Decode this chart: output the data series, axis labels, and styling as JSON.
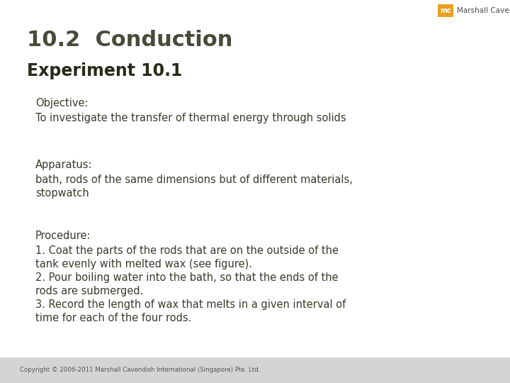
{
  "bg_color": "#ffffff",
  "footer_bg_color": "#d4d4d4",
  "title_line1": "10.2  Conduction",
  "title_line2": "Experiment 10.1",
  "title_color": "#4a4a3a",
  "title2_color": "#2a2a1a",
  "body_color": "#3a3a2a",
  "logo_box_color": "#e8a020",
  "logo_text": "Marshall Cavendish",
  "logo_mc": "mc",
  "footer_text": "Copyright © 2006-2011 Marshall Cavendish International (Singapore) Pte. Ltd.",
  "footer_color": "#555550",
  "sections": [
    {
      "heading": "Objective:",
      "body": "To investigate the transfer of thermal energy through solids"
    },
    {
      "heading": "Apparatus:",
      "body": "bath, rods of the same dimensions but of different materials,\nstopwatch"
    },
    {
      "heading": "Procedure:",
      "body": "1. Coat the parts of the rods that are on the outside of the\ntank evenly with melted wax (see figure).\n2. Pour boiling water into the bath, so that the ends of the\nrods are submerged.\n3. Record the length of wax that melts in a given interval of\ntime for each of the four rods."
    }
  ],
  "figsize": [
    7.2,
    5.4
  ],
  "dpi": 100
}
